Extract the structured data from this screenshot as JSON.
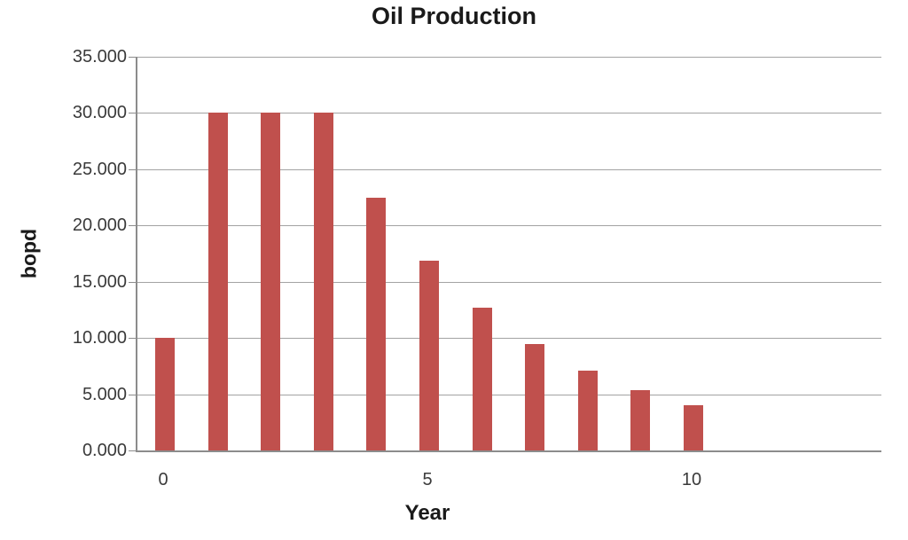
{
  "chart_data": {
    "type": "bar",
    "title": "Oil Production",
    "xlabel": "Year",
    "ylabel": "bopd",
    "x": [
      0,
      1,
      2,
      3,
      4,
      5,
      6,
      7,
      8,
      9,
      10
    ],
    "values": [
      10000,
      30000,
      30000,
      30000,
      22500,
      16875,
      12656,
      9492,
      7119,
      5339,
      4004
    ],
    "ylim": [
      0,
      35000
    ],
    "ytick_step": 5000,
    "ytick_labels": [
      "0.000",
      "5.000",
      "10.000",
      "15.000",
      "20.000",
      "25.000",
      "30.000",
      "35.000"
    ],
    "xticks": [
      0,
      5,
      10
    ],
    "xtick_labels": [
      "0",
      "5",
      "10"
    ],
    "xlim": [
      -0.52,
      13.56
    ],
    "grid": true,
    "legend": "none",
    "colors": {
      "bar": "#C0504D",
      "gridline": "#A3A3A3",
      "axis": "#8C8C8C",
      "tick_text": "#3A3A3A",
      "title_text": "#1A1A1A"
    }
  }
}
